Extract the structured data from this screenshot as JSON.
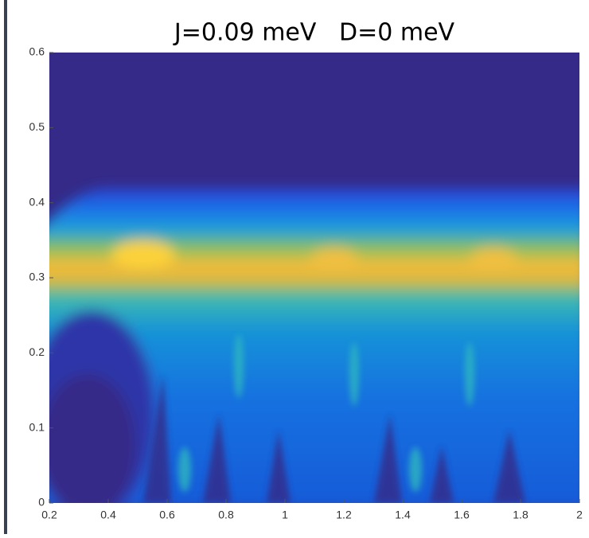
{
  "chart_data": {
    "type": "heatmap",
    "title": "J=0.09 meV   D=0 meV",
    "xlim": [
      0.2,
      2
    ],
    "xticks": [
      0.2,
      0.4,
      0.6,
      0.8,
      1,
      1.2,
      1.4,
      1.6,
      1.8,
      2
    ],
    "ylim": [
      0,
      0.6
    ],
    "yticks": [
      0,
      0.1,
      0.2,
      0.3,
      0.4,
      0.5,
      0.6
    ]
  }
}
